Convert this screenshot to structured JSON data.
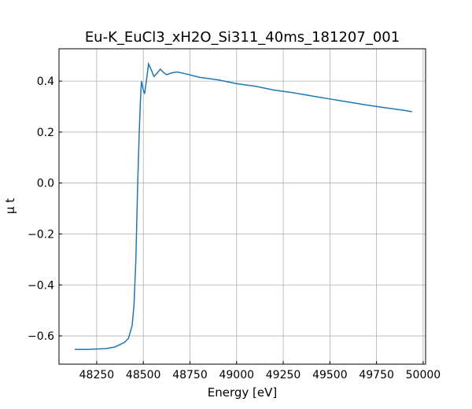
{
  "chart_data": {
    "type": "line",
    "title": "Eu-K_EuCl3_xH2O_Si311_40ms_181207_001",
    "x_label": "Energy [eV]",
    "y_label": "μ t",
    "x": [
      48132,
      48200,
      48300,
      48350,
      48400,
      48420,
      48440,
      48450,
      48460,
      48470,
      48478,
      48485,
      48490,
      48500,
      48507,
      48520,
      48528,
      48545,
      48557,
      48575,
      48591,
      48610,
      48625,
      48650,
      48680,
      48720,
      48800,
      48900,
      49000,
      49100,
      49200,
      49300,
      49400,
      49500,
      49600,
      49700,
      49800,
      49900,
      49940
    ],
    "series": [
      {
        "color": "#1f77b4",
        "values": [
          -0.653,
          -0.653,
          -0.65,
          -0.643,
          -0.625,
          -0.61,
          -0.56,
          -0.48,
          -0.3,
          0.0,
          0.2,
          0.33,
          0.4,
          0.365,
          0.35,
          0.42,
          0.468,
          0.44,
          0.418,
          0.432,
          0.447,
          0.433,
          0.425,
          0.432,
          0.436,
          0.43,
          0.415,
          0.405,
          0.39,
          0.38,
          0.365,
          0.355,
          0.342,
          0.33,
          0.318,
          0.306,
          0.295,
          0.285,
          0.28
        ]
      }
    ],
    "xlim": [
      48048,
      50013
    ],
    "ylim": [
      -0.711,
      0.527
    ],
    "xticks": [
      48250,
      48500,
      48750,
      49000,
      49250,
      49500,
      49750,
      50000
    ],
    "yticks": [
      {
        "value": -0.6,
        "label": "−0.6"
      },
      {
        "value": -0.4,
        "label": "−0.4"
      },
      {
        "value": -0.2,
        "label": "−0.2"
      },
      {
        "value": 0.0,
        "label": "0.0"
      },
      0.2,
      0.4
    ],
    "grid": true
  }
}
